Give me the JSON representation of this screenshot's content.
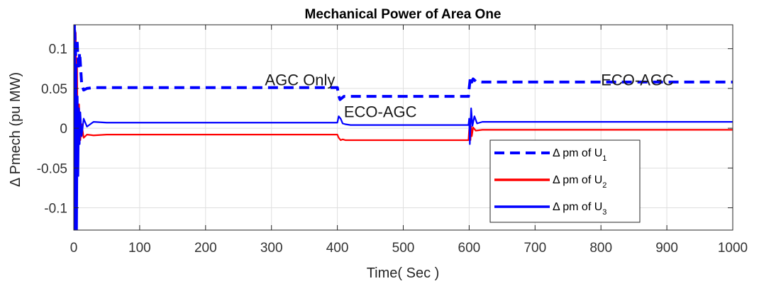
{
  "chart_data": {
    "type": "line",
    "title": "Mechanical Power of Area One",
    "xlabel": "Time( Sec )",
    "ylabel": "Δ Pmech (pu MW)",
    "xlim": [
      0,
      1000
    ],
    "ylim": [
      -0.128,
      0.13
    ],
    "xticks": [
      0,
      100,
      200,
      300,
      400,
      500,
      600,
      700,
      800,
      900,
      1000
    ],
    "yticks": [
      -0.1,
      -0.05,
      0,
      0.05,
      0.1
    ],
    "xtick_labels": [
      "0",
      "100",
      "200",
      "300",
      "400",
      "500",
      "600",
      "700",
      "800",
      "900",
      "1000"
    ],
    "ytick_labels": [
      "-0.1",
      "-0.05",
      "0",
      "0.05",
      "0.1"
    ],
    "grid": true,
    "legend_position": "lower-right",
    "annotations": [
      {
        "text": "AGC Only",
        "x": 290,
        "y": 0.054
      },
      {
        "text": "ECO-AGC",
        "x": 410,
        "y": 0.014
      },
      {
        "text": "ECO-AGC",
        "x": 800,
        "y": 0.054
      }
    ],
    "series": [
      {
        "name": "Δ pm of U1",
        "legend_main": "Δ pm of U",
        "legend_sub": "1",
        "color": "#0000ff",
        "style": "dashed",
        "x": [
          0,
          1,
          3,
          5,
          7,
          9,
          12,
          15,
          20,
          30,
          50,
          100,
          200,
          300,
          400,
          402,
          404,
          407,
          410,
          420,
          500,
          599,
          600,
          602,
          604,
          606,
          610,
          620,
          700,
          800,
          900,
          1000
        ],
        "y": [
          0,
          0.13,
          0.09,
          0.112,
          0.075,
          0.095,
          0.055,
          0.048,
          0.05,
          0.051,
          0.051,
          0.051,
          0.051,
          0.051,
          0.051,
          0.041,
          0.036,
          0.038,
          0.04,
          0.04,
          0.04,
          0.04,
          0.05,
          0.065,
          0.058,
          0.062,
          0.059,
          0.058,
          0.058,
          0.058,
          0.058,
          0.058
        ]
      },
      {
        "name": "Δ pm of U2",
        "legend_main": "Δ pm of U",
        "legend_sub": "2",
        "color": "#ff0000",
        "style": "solid",
        "x": [
          0,
          1,
          2,
          3,
          4,
          5,
          6,
          8,
          10,
          12,
          15,
          20,
          30,
          50,
          100,
          200,
          300,
          400,
          402,
          405,
          408,
          412,
          420,
          500,
          599,
          600,
          601,
          602,
          603,
          604,
          606,
          610,
          620,
          700,
          800,
          900,
          1000
        ],
        "y": [
          0,
          0.13,
          -0.08,
          0.12,
          0.02,
          0.08,
          -0.02,
          0.03,
          -0.015,
          0.005,
          -0.012,
          -0.008,
          -0.009,
          -0.008,
          -0.008,
          -0.008,
          -0.008,
          -0.008,
          -0.012,
          -0.015,
          -0.014,
          -0.015,
          -0.015,
          -0.015,
          -0.015,
          -0.002,
          0.005,
          -0.015,
          0.002,
          -0.01,
          0.001,
          -0.003,
          -0.002,
          -0.002,
          -0.002,
          -0.002,
          -0.002
        ]
      },
      {
        "name": "Δ pm of U3",
        "legend_main": "Δ pm of U",
        "legend_sub": "3",
        "color": "#0000ff",
        "style": "solid",
        "x": [
          0,
          1,
          2,
          3,
          4,
          5,
          6,
          7,
          8,
          9,
          10,
          12,
          15,
          20,
          30,
          50,
          100,
          200,
          300,
          400,
          402,
          405,
          408,
          412,
          420,
          500,
          599,
          600,
          601,
          603,
          605,
          608,
          612,
          620,
          700,
          800,
          900,
          1000
        ],
        "y": [
          0,
          -0.128,
          0.1,
          -0.128,
          0.08,
          -0.128,
          0.04,
          -0.06,
          0.025,
          -0.02,
          0.02,
          -0.01,
          0.012,
          0.002,
          0.008,
          0.007,
          0.007,
          0.007,
          0.007,
          0.007,
          0.015,
          0.012,
          0.006,
          0.005,
          0.004,
          0.004,
          0.004,
          0.012,
          -0.02,
          0.025,
          0.003,
          0.015,
          0.006,
          0.008,
          0.008,
          0.008,
          0.008,
          0.008
        ]
      }
    ]
  }
}
